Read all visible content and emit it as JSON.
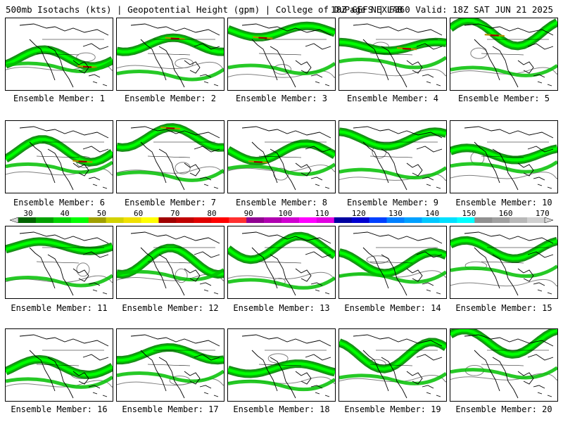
{
  "header": {
    "left": "500mb Isotachs (kts) | Geopotential Height (gpm) | College of DuPage NEXLAB",
    "right": "18Z GEFS | F360 Valid: 18Z SAT JUN 21 2025"
  },
  "members": [
    {
      "label": "Ensemble Member: 1"
    },
    {
      "label": "Ensemble Member: 2"
    },
    {
      "label": "Ensemble Member: 3"
    },
    {
      "label": "Ensemble Member: 4"
    },
    {
      "label": "Ensemble Member: 5"
    },
    {
      "label": "Ensemble Member: 6"
    },
    {
      "label": "Ensemble Member: 7"
    },
    {
      "label": "Ensemble Member: 8"
    },
    {
      "label": "Ensemble Member: 9"
    },
    {
      "label": "Ensemble Member: 10"
    },
    {
      "label": "Ensemble Member: 11"
    },
    {
      "label": "Ensemble Member: 12"
    },
    {
      "label": "Ensemble Member: 13"
    },
    {
      "label": "Ensemble Member: 14"
    },
    {
      "label": "Ensemble Member: 15"
    },
    {
      "label": "Ensemble Member: 16"
    },
    {
      "label": "Ensemble Member: 17"
    },
    {
      "label": "Ensemble Member: 18"
    },
    {
      "label": "Ensemble Member: 19"
    },
    {
      "label": "Ensemble Member: 20"
    }
  ],
  "colorbar": {
    "labels": [
      "30",
      "40",
      "50",
      "60",
      "70",
      "80",
      "90",
      "100",
      "110",
      "120",
      "130",
      "140",
      "150",
      "160",
      "170"
    ],
    "colors": [
      "#006400",
      "#00a000",
      "#00d200",
      "#00ff00",
      "#a0a000",
      "#d2d200",
      "#f0e000",
      "#ffff00",
      "#a00000",
      "#c00000",
      "#e00000",
      "#ff0000",
      "#ff3030",
      "#900090",
      "#b000b0",
      "#d000d0",
      "#ff00ff",
      "#e000e0",
      "#0000a0",
      "#0000d0",
      "#0040ff",
      "#0080ff",
      "#00a0ff",
      "#00c8ff",
      "#00e0ff",
      "#00ffff",
      "#909090",
      "#a0a0a0",
      "#b8b8b8",
      "#d0d0d0"
    ]
  },
  "colors": {
    "jet_dark": "#008000",
    "jet_mid": "#00c000",
    "jet_light": "#00ff00",
    "jet_core": "#b09000",
    "jet_max": "#a00000",
    "height_contour": "#808080",
    "coastline": "#000000"
  }
}
